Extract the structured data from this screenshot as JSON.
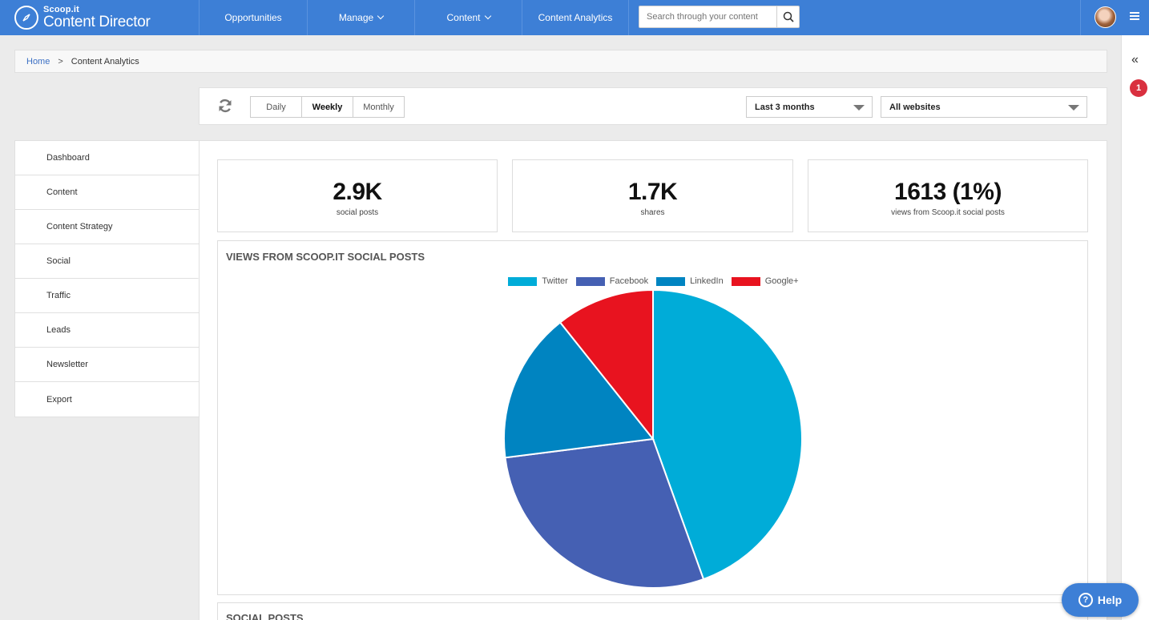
{
  "header": {
    "brand": "Scoop.it",
    "product": "Content Director",
    "nav": [
      {
        "label": "Opportunities"
      },
      {
        "label": "Manage"
      },
      {
        "label": "Content"
      },
      {
        "label": "Content Analytics"
      }
    ],
    "search_placeholder": "Search through your content"
  },
  "breadcrumb": {
    "home": "Home",
    "separator": ">",
    "current": "Content Analytics"
  },
  "filters": {
    "periods": [
      "Daily",
      "Weekly",
      "Monthly"
    ],
    "active_period": "Weekly",
    "range": "Last 3 months",
    "website": "All websites"
  },
  "sidebar": {
    "items": [
      {
        "label": "Dashboard"
      },
      {
        "label": "Content"
      },
      {
        "label": "Content Strategy"
      },
      {
        "label": "Social"
      },
      {
        "label": "Traffic"
      },
      {
        "label": "Leads"
      },
      {
        "label": "Newsletter"
      },
      {
        "label": "Export"
      }
    ],
    "active": "Social"
  },
  "stats": [
    {
      "value": "2.9K",
      "label": "social posts"
    },
    {
      "value": "1.7K",
      "label": "shares"
    },
    {
      "value": "1613 (1%)",
      "label": "views from Scoop.it social posts"
    }
  ],
  "chart_data": {
    "type": "pie",
    "title": "VIEWS FROM SCOOP.IT SOCIAL POSTS",
    "series": [
      {
        "name": "Twitter",
        "value": 44.5,
        "color": "#00acd8"
      },
      {
        "name": "Facebook",
        "value": 28.5,
        "color": "#4560b3"
      },
      {
        "name": "LinkedIn",
        "value": 16.3,
        "color": "#0084c1"
      },
      {
        "name": "Google+",
        "value": 10.7,
        "color": "#e8131f"
      }
    ]
  },
  "social_posts_title": "SOCIAL POSTS",
  "rail": {
    "badge": "1",
    "collapse_icon": "double-chevron-left-icon"
  },
  "help": {
    "label": "Help"
  }
}
